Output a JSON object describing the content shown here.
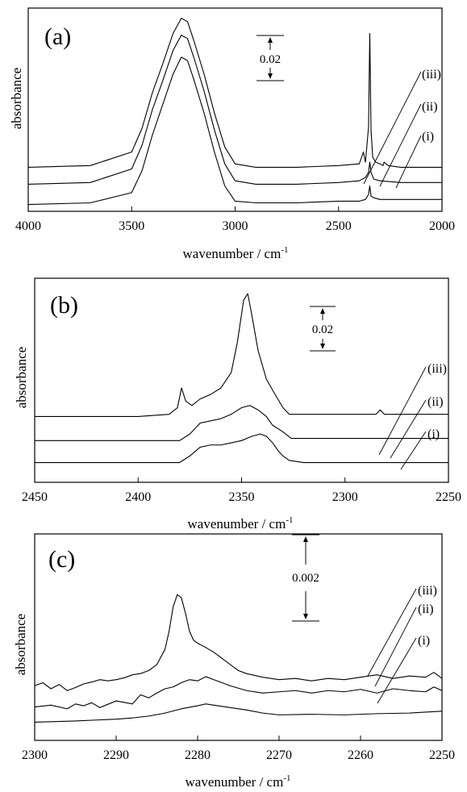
{
  "chart_data": [
    {
      "type": "line",
      "panel_label": "(a)",
      "xlabel": "wavenumber / cm",
      "xlabel_sup": "-1",
      "ylabel": "absorbance",
      "xlim": [
        4000,
        2000
      ],
      "x_reversed": true,
      "xticks": [
        "4000",
        "3500",
        "3000",
        "2500",
        "2000"
      ],
      "xtick_values": [
        4000,
        3500,
        3000,
        2500,
        2000
      ],
      "grid": false,
      "scale_bar": "0.02",
      "series": [
        {
          "name": "(iii)",
          "x": [
            4000,
            3700,
            3500,
            3450,
            3400,
            3350,
            3300,
            3260,
            3230,
            3200,
            3150,
            3100,
            3050,
            3000,
            2900,
            2700,
            2500,
            2400,
            2380,
            2370,
            2355,
            2349,
            2343,
            2335,
            2320,
            2300,
            2285,
            2280,
            2260,
            2200,
            2100,
            2000
          ],
          "y": [
            0.081,
            0.082,
            0.09,
            0.104,
            0.125,
            0.142,
            0.16,
            0.169,
            0.167,
            0.156,
            0.136,
            0.113,
            0.093,
            0.083,
            0.081,
            0.081,
            0.082,
            0.083,
            0.09,
            0.084,
            0.105,
            0.16,
            0.103,
            0.087,
            0.084,
            0.083,
            0.082,
            0.084,
            0.082,
            0.081,
            0.081,
            0.081
          ]
        },
        {
          "name": "(ii)",
          "x": [
            4000,
            3700,
            3500,
            3450,
            3400,
            3350,
            3300,
            3260,
            3230,
            3200,
            3150,
            3100,
            3050,
            3000,
            2900,
            2700,
            2500,
            2400,
            2370,
            2355,
            2349,
            2343,
            2330,
            2300,
            2200,
            2100,
            2000
          ],
          "y": [
            0.071,
            0.072,
            0.08,
            0.094,
            0.115,
            0.132,
            0.15,
            0.159,
            0.157,
            0.146,
            0.126,
            0.103,
            0.083,
            0.073,
            0.071,
            0.071,
            0.072,
            0.073,
            0.075,
            0.078,
            0.084,
            0.078,
            0.074,
            0.073,
            0.072,
            0.072,
            0.072
          ]
        },
        {
          "name": "(i)",
          "x": [
            4000,
            3700,
            3500,
            3450,
            3400,
            3350,
            3300,
            3260,
            3230,
            3200,
            3150,
            3100,
            3050,
            3000,
            2900,
            2700,
            2500,
            2400,
            2370,
            2355,
            2349,
            2343,
            2330,
            2300,
            2200,
            2100,
            2000
          ],
          "y": [
            0.059,
            0.06,
            0.066,
            0.079,
            0.1,
            0.118,
            0.136,
            0.146,
            0.144,
            0.133,
            0.113,
            0.09,
            0.07,
            0.061,
            0.06,
            0.06,
            0.061,
            0.061,
            0.062,
            0.065,
            0.07,
            0.064,
            0.063,
            0.062,
            0.062,
            0.062,
            0.062
          ]
        }
      ],
      "ylim": [
        0.055,
        0.175
      ]
    },
    {
      "type": "line",
      "panel_label": "(b)",
      "xlabel": "wavenumber / cm",
      "xlabel_sup": "-1",
      "ylabel": "absorbance",
      "xlim": [
        2450,
        2250
      ],
      "x_reversed": true,
      "xticks": [
        "2450",
        "2400",
        "2350",
        "2300",
        "2250"
      ],
      "xtick_values": [
        2450,
        2400,
        2350,
        2300,
        2250
      ],
      "grid": false,
      "scale_bar": "0.02",
      "series": [
        {
          "name": "(iii)",
          "x": [
            2450,
            2400,
            2385,
            2381,
            2379,
            2377,
            2374,
            2370,
            2365,
            2360,
            2355,
            2352,
            2349,
            2347,
            2345,
            2342,
            2338,
            2335,
            2330,
            2327,
            2320,
            2300,
            2285,
            2283,
            2281,
            2270,
            2250
          ],
          "y": [
            0.062,
            0.062,
            0.063,
            0.066,
            0.075,
            0.069,
            0.067,
            0.07,
            0.072,
            0.075,
            0.082,
            0.096,
            0.115,
            0.118,
            0.108,
            0.092,
            0.079,
            0.074,
            0.066,
            0.063,
            0.063,
            0.063,
            0.063,
            0.065,
            0.063,
            0.063,
            0.063
          ]
        },
        {
          "name": "(ii)",
          "x": [
            2450,
            2400,
            2380,
            2375,
            2370,
            2365,
            2360,
            2355,
            2350,
            2346,
            2342,
            2338,
            2335,
            2330,
            2326,
            2320,
            2300,
            2270,
            2250
          ],
          "y": [
            0.051,
            0.051,
            0.051,
            0.054,
            0.059,
            0.06,
            0.061,
            0.063,
            0.066,
            0.067,
            0.065,
            0.062,
            0.058,
            0.055,
            0.052,
            0.052,
            0.052,
            0.052,
            0.052
          ]
        },
        {
          "name": "(i)",
          "x": [
            2450,
            2400,
            2380,
            2375,
            2370,
            2365,
            2360,
            2355,
            2350,
            2345,
            2341,
            2338,
            2335,
            2332,
            2330,
            2327,
            2320,
            2300,
            2270,
            2250
          ],
          "y": [
            0.041,
            0.041,
            0.041,
            0.044,
            0.048,
            0.049,
            0.049,
            0.05,
            0.051,
            0.053,
            0.054,
            0.053,
            0.05,
            0.046,
            0.044,
            0.042,
            0.041,
            0.041,
            0.041,
            0.041
          ]
        }
      ],
      "ylim": [
        0.032,
        0.125
      ]
    },
    {
      "type": "line",
      "panel_label": "(c)",
      "xlabel": "wavenumber / cm",
      "xlabel_sup": "-1",
      "ylabel": "absorbance",
      "xlim": [
        2300,
        2250
      ],
      "x_reversed": true,
      "xticks": [
        "2300",
        "2290",
        "2280",
        "2270",
        "2260",
        "2250"
      ],
      "xtick_values": [
        2300,
        2290,
        2280,
        2270,
        2260,
        2250
      ],
      "grid": false,
      "scale_bar": "0.002",
      "series": [
        {
          "name": "(iii)",
          "x": [
            2300,
            2299,
            2298,
            2297,
            2296,
            2295,
            2294,
            2293,
            2292,
            2291,
            2290,
            2289,
            2288,
            2287,
            2286,
            2285,
            2284,
            2283.5,
            2283,
            2282.5,
            2282,
            2281.5,
            2281,
            2280.5,
            2280,
            2279,
            2278,
            2277,
            2276,
            2275,
            2274,
            2273,
            2272,
            2270,
            2268,
            2266,
            2264,
            2262,
            2260,
            2258,
            2256,
            2254,
            2252,
            2251,
            2250
          ],
          "y": [
            0.0,
            5e-05,
            -5e-05,
            2e-05,
            -8e-05,
            -3e-05,
            3e-05,
            6e-05,
            0.0001,
            8e-05,
            0.0001,
            0.00013,
            0.00018,
            0.0002,
            0.00025,
            0.00035,
            0.0006,
            0.0009,
            0.0013,
            0.0015,
            0.00145,
            0.0012,
            0.0009,
            0.00075,
            0.0007,
            0.00063,
            0.00055,
            0.00045,
            0.00035,
            0.00025,
            0.0002,
            0.00017,
            0.00014,
            0.0001,
            0.00012,
            8e-05,
            0.00012,
            0.0001,
            0.00014,
            0.00018,
            0.00012,
            0.00016,
            0.00014,
            0.00022,
            0.00012
          ]
        },
        {
          "name": "(ii)",
          "x": [
            2300,
            2298,
            2296,
            2295,
            2294,
            2293,
            2292,
            2290,
            2288,
            2287,
            2286,
            2285,
            2284,
            2283,
            2282,
            2281,
            2280,
            2279,
            2278,
            2277,
            2276,
            2274,
            2272,
            2270,
            2268,
            2266,
            2264,
            2262,
            2260,
            2258,
            2256,
            2254,
            2252,
            2251,
            2250
          ],
          "y": [
            -0.00035,
            -0.00032,
            -0.00038,
            -0.0003,
            -0.00033,
            -0.00028,
            -0.00036,
            -0.00025,
            -0.0003,
            -0.00015,
            -0.0002,
            -0.00012,
            -5e-05,
            -2e-05,
            5e-05,
            0.0001,
            8e-05,
            0.00015,
            0.0001,
            5e-05,
            0.0,
            -8e-05,
            -0.00012,
            -0.0001,
            -8e-05,
            -0.00012,
            -8e-05,
            -0.0001,
            -6e-05,
            -0.00012,
            -5e-05,
            -8e-05,
            -0.0001,
            -2e-05,
            -8e-05
          ]
        },
        {
          "name": "(i)",
          "x": [
            2300,
            2295,
            2290,
            2288,
            2286,
            2284,
            2282,
            2280,
            2279,
            2278,
            2276,
            2274,
            2272,
            2270,
            2266,
            2262,
            2258,
            2254,
            2250
          ],
          "y": [
            -0.0006,
            -0.00058,
            -0.00055,
            -0.00053,
            -0.0005,
            -0.00045,
            -0.00038,
            -0.00033,
            -0.0003,
            -0.00032,
            -0.00036,
            -0.0004,
            -0.00045,
            -0.00048,
            -0.00047,
            -0.00048,
            -0.00046,
            -0.00045,
            -0.00042
          ]
        }
      ],
      "ylim": [
        -0.0009,
        0.0025
      ]
    }
  ]
}
